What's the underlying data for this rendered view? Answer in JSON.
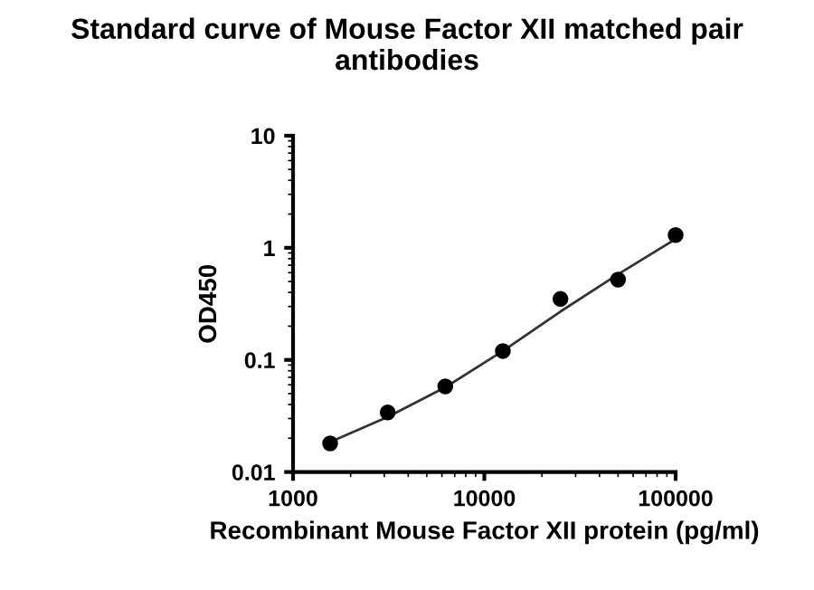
{
  "chart_data": {
    "type": "scatter",
    "title": "Standard curve of Mouse Factor XII matched pair antibodies",
    "xlabel": "Recombinant Mouse Factor XII protein (pg/ml)",
    "ylabel": "OD450",
    "log": "xy",
    "x": [
      1562.5,
      3125,
      6250,
      12500,
      25000,
      50000,
      100000
    ],
    "series": [
      {
        "color": "#000000",
        "marker": "circle",
        "values": [
          0.018,
          0.034,
          0.058,
          0.12,
          0.35,
          0.52,
          1.3
        ]
      },
      {
        "type": "line",
        "color": "#333333",
        "marker": "none",
        "line_style": "solid",
        "x": [
          1562.5,
          3125,
          6250,
          12500,
          25000,
          50000,
          100000
        ],
        "values": [
          0.0185,
          0.031,
          0.057,
          0.12,
          0.27,
          0.58,
          1.2
        ]
      }
    ],
    "xlim": [
      1000,
      100000
    ],
    "ylim": [
      0.01,
      10
    ],
    "xticks": [
      1000,
      10000,
      100000
    ],
    "yticks": [
      0.01,
      0.1,
      1,
      10
    ],
    "grid": false,
    "legend": false
  }
}
